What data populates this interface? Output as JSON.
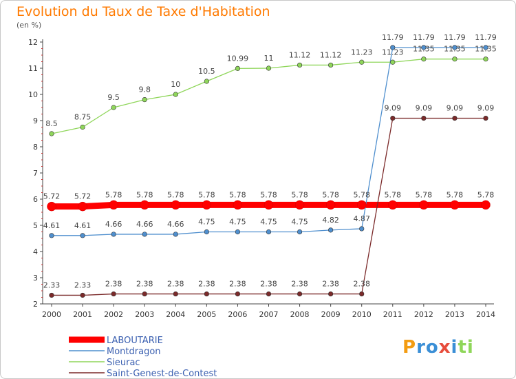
{
  "chart_data": {
    "type": "line",
    "title": "Evolution du Taux de Taxe d'Habitation",
    "ylabel": "(en %)",
    "xlabel": "",
    "ylim": [
      2,
      12
    ],
    "yticks": [
      2,
      3,
      4,
      5,
      6,
      7,
      8,
      9,
      10,
      11,
      12
    ],
    "grid": false,
    "legend_position": "bottom-left",
    "x": [
      "2000",
      "2001",
      "2002",
      "2003",
      "2004",
      "2005",
      "2006",
      "2007",
      "2008",
      "2009",
      "2010",
      "2011",
      "2012",
      "2013",
      "2014"
    ],
    "series": [
      {
        "name": "LABOUTARIE",
        "color": "#ff0000",
        "values": [
          5.72,
          5.72,
          5.78,
          5.78,
          5.78,
          5.78,
          5.78,
          5.78,
          5.78,
          5.78,
          5.78,
          5.78,
          5.78,
          5.78,
          5.78
        ],
        "labels": [
          "5.72",
          "5.72",
          "5.78",
          "5.78",
          "5.78",
          "5.78",
          "5.78",
          "5.78",
          "5.78",
          "5.78",
          "5.78",
          "5.78",
          "5.78",
          "5.78",
          "5.78"
        ]
      },
      {
        "name": "Montdragon",
        "color": "#4f8fce",
        "values": [
          4.61,
          4.61,
          4.66,
          4.66,
          4.66,
          4.75,
          4.75,
          4.75,
          4.75,
          4.82,
          4.87,
          11.79,
          11.79,
          11.79,
          11.79
        ],
        "labels": [
          "4.61",
          "4.61",
          "4.66",
          "4.66",
          "4.66",
          "4.75",
          "4.75",
          "4.75",
          "4.75",
          "4.82",
          "4.87",
          "11.79",
          "11.79",
          "11.79",
          "11.79"
        ]
      },
      {
        "name": "Sieurac",
        "color": "#8fd65a",
        "values": [
          8.5,
          8.75,
          9.5,
          9.8,
          10,
          10.5,
          10.99,
          11,
          11.12,
          11.12,
          11.23,
          11.23,
          11.35,
          11.35,
          11.35
        ],
        "labels": [
          "8.5",
          "8.75",
          "9.5",
          "9.8",
          "10",
          "10.5",
          "10.99",
          "11",
          "11.12",
          "11.12",
          "11.23",
          "11.23",
          "11.35",
          "11.35",
          "11.35"
        ]
      },
      {
        "name": "Saint-Genest-de-Contest",
        "color": "#7b2a2a",
        "values": [
          2.33,
          2.33,
          2.38,
          2.38,
          2.38,
          2.38,
          2.38,
          2.38,
          2.38,
          2.38,
          2.38,
          9.09,
          9.09,
          9.09,
          9.09
        ],
        "labels": [
          "2.33",
          "2.33",
          "2.38",
          "2.38",
          "2.38",
          "2.38",
          "2.38",
          "2.38",
          "2.38",
          "2.38",
          "2.38",
          "9.09",
          "9.09",
          "9.09",
          "9.09"
        ]
      }
    ]
  },
  "logo": {
    "text": "ProxIti",
    "letters": [
      {
        "ch": "P",
        "color": "#f39c12"
      },
      {
        "ch": "r",
        "color": "#3b8fd6"
      },
      {
        "ch": "o",
        "color": "#3b8fd6"
      },
      {
        "ch": "x",
        "color": "#e74c3c"
      },
      {
        "ch": "i",
        "color": "#3b8fd6"
      },
      {
        "ch": "t",
        "color": "#8fd65a"
      },
      {
        "ch": "i",
        "color": "#8fd65a"
      }
    ]
  }
}
